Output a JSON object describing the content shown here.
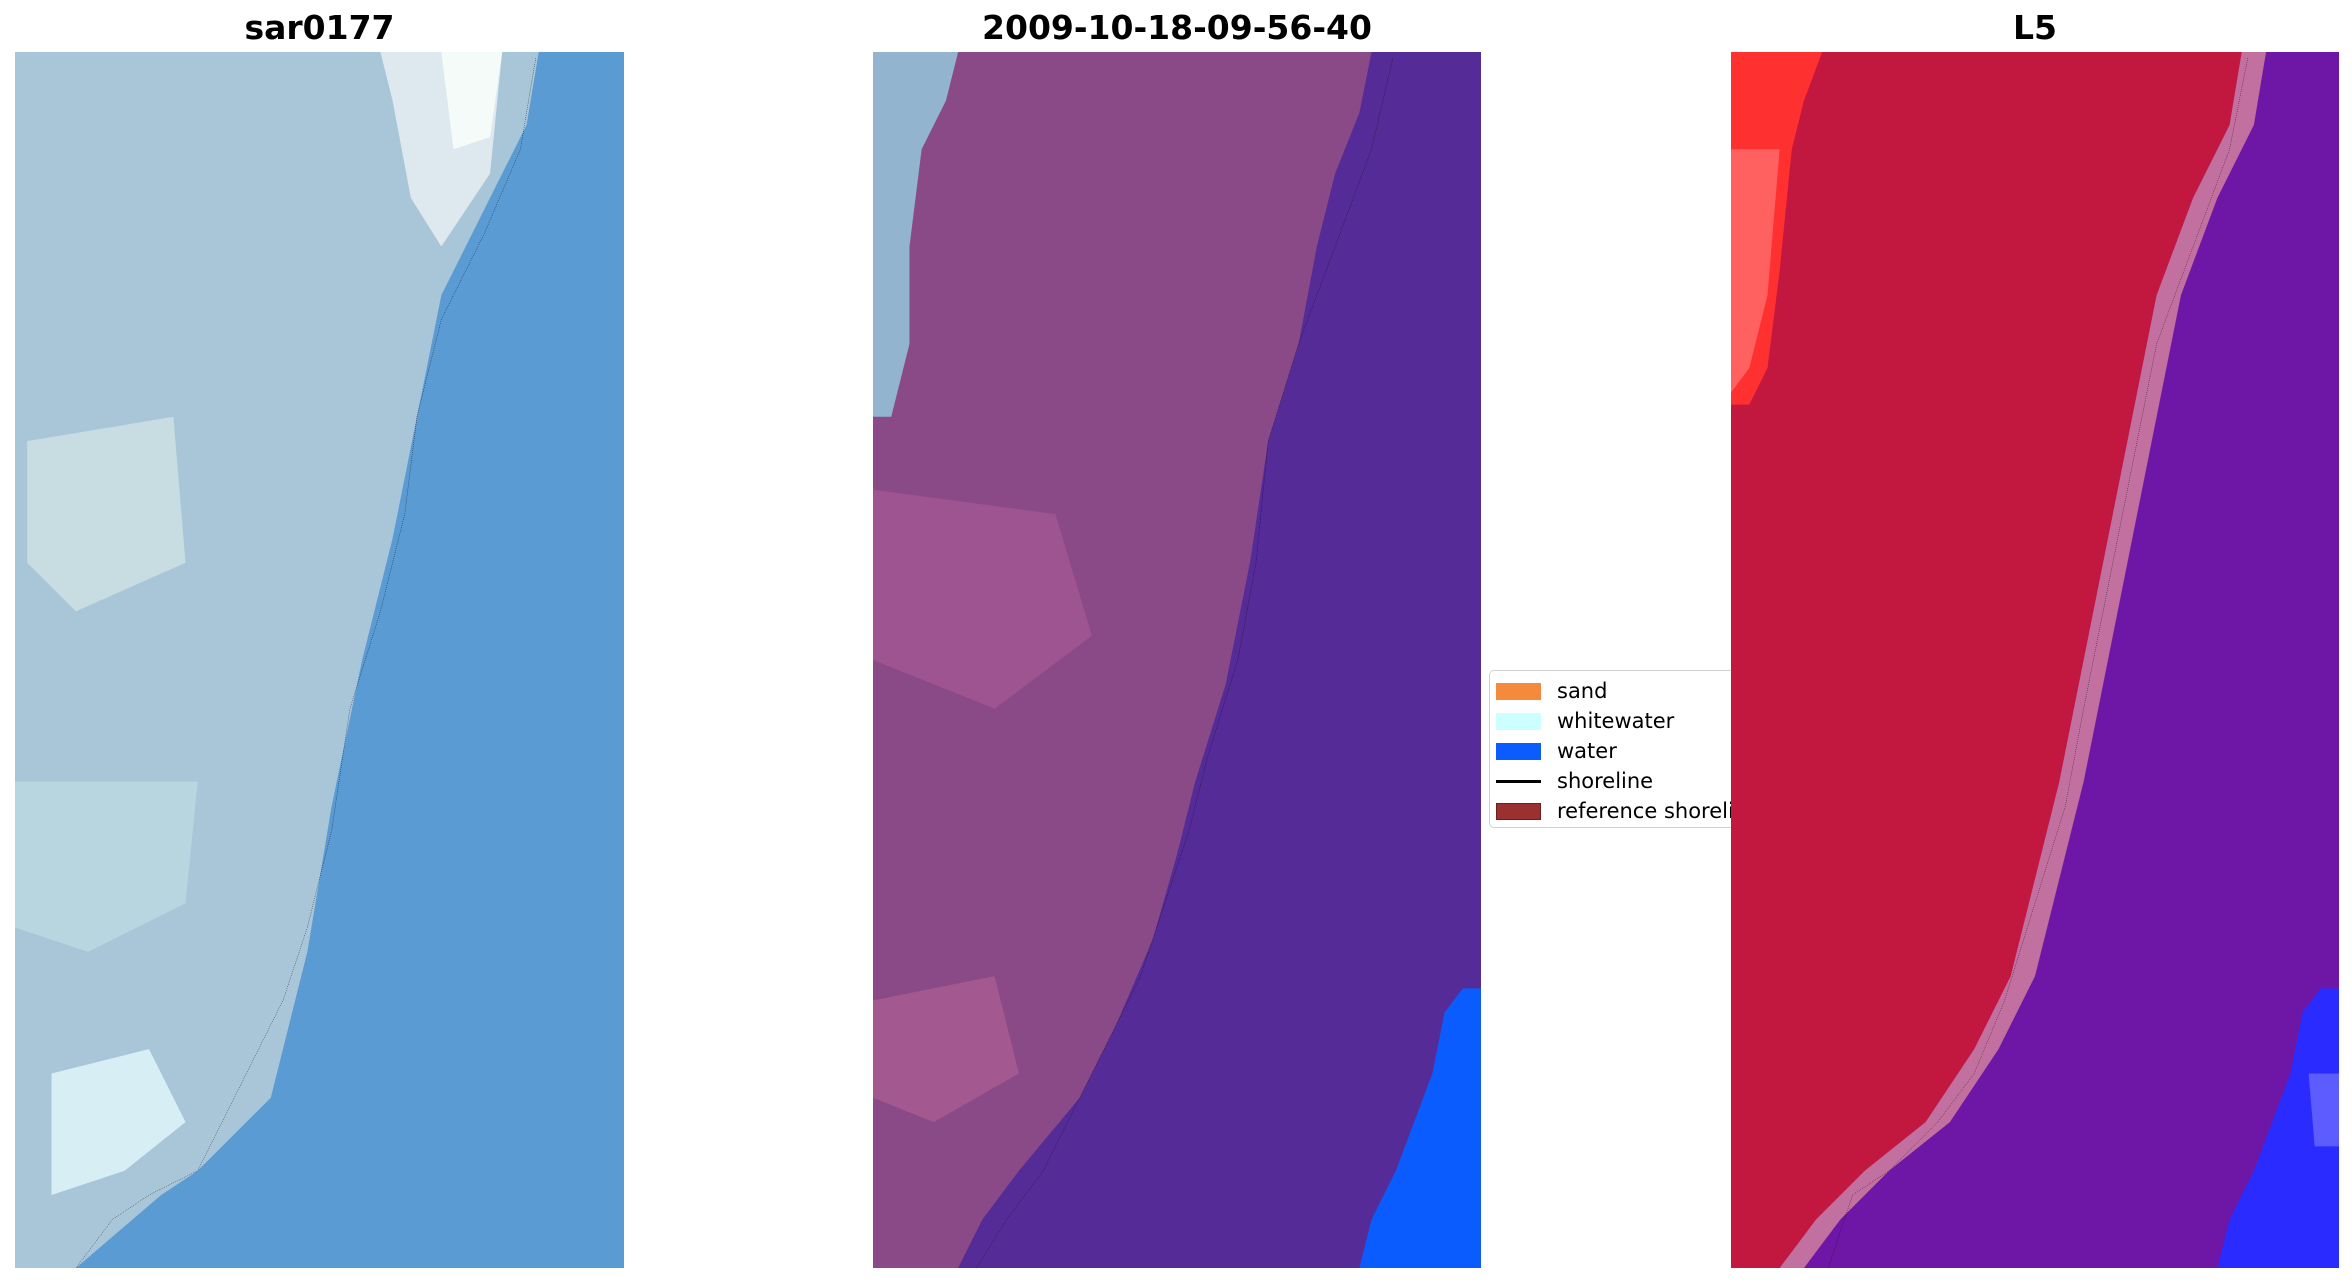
{
  "panels": [
    {
      "title": "sar0177"
    },
    {
      "title": "2009-10-18-09-56-40"
    },
    {
      "title": "L5"
    }
  ],
  "legend": {
    "items": [
      {
        "label": "sand",
        "color": "#f5893c",
        "kind": "patch"
      },
      {
        "label": "whitewater",
        "color": "#ccffff",
        "kind": "patch"
      },
      {
        "label": "water",
        "color": "#0a5cff",
        "kind": "patch"
      },
      {
        "label": "shoreline",
        "color": "#000000",
        "kind": "line"
      },
      {
        "label": "reference shoreline",
        "color": "#9b3030",
        "kind": "patch"
      }
    ]
  },
  "colors": {
    "rgb_land": "#a9c6d8",
    "rgb_sea": "#5b9bd3",
    "classified_land": "#8a4a87",
    "classified_water_dark": "#552b98",
    "classified_water_bright": "#0a5cff",
    "mndwi_land": "#c21840",
    "mndwi_water": "#6e17a6",
    "mndwi_edge_blue": "#2a2cff",
    "mndwi_corner_red": "#ff3030"
  }
}
